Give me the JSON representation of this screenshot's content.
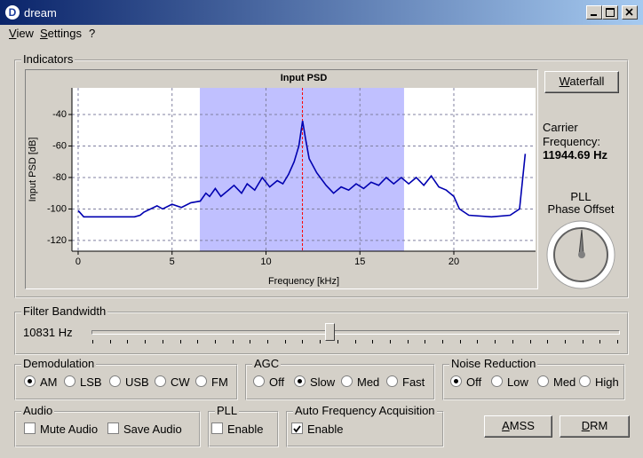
{
  "window": {
    "icon": "D",
    "title": "dream"
  },
  "menu": [
    "View",
    "Settings",
    "?"
  ],
  "indicators": {
    "label": "Indicators",
    "waterfall_button": "Waterfall",
    "carrier_label": [
      "Carrier",
      "Frequency:"
    ],
    "carrier_value": "11944.69 Hz",
    "pll_label": [
      "PLL",
      "Phase Offset"
    ]
  },
  "chart_data": {
    "type": "line",
    "title": "Input PSD",
    "x_label": "Frequency [kHz]",
    "y_label": "Input PSD [dB]",
    "x": [
      0,
      0.3,
      1,
      2,
      3,
      3.3,
      3.5,
      4.2,
      4.5,
      5,
      5.5,
      6,
      6.5,
      6.8,
      7,
      7.3,
      7.6,
      8,
      8.3,
      8.7,
      9,
      9.4,
      9.8,
      10.2,
      10.6,
      10.9,
      11.2,
      11.5,
      11.75,
      11.95,
      12.1,
      12.3,
      12.7,
      13.2,
      13.6,
      14,
      14.4,
      14.8,
      15.2,
      15.6,
      16,
      16.4,
      16.8,
      17.2,
      17.6,
      18,
      18.4,
      18.8,
      19.2,
      19.6,
      20,
      20.3,
      20.8,
      22,
      23,
      23.5,
      23.8
    ],
    "values": [
      -101,
      -105,
      -105,
      -105,
      -105,
      -104,
      -102,
      -98,
      -100,
      -97,
      -99,
      -96,
      -95,
      -90,
      -92,
      -87,
      -92,
      -88,
      -85,
      -90,
      -84,
      -88,
      -80,
      -86,
      -82,
      -84,
      -78,
      -70,
      -60,
      -44,
      -55,
      -68,
      -77,
      -85,
      -90,
      -86,
      -88,
      -84,
      -87,
      -83,
      -85,
      -80,
      -84,
      -80,
      -84,
      -80,
      -85,
      -79,
      -86,
      -88,
      -92,
      -100,
      -104,
      -105,
      -104,
      -100,
      -65
    ],
    "color": "#0000b0",
    "xlim": [
      -0.33,
      24.35
    ],
    "ylim": [
      -126.8,
      -23.1
    ],
    "xticks": [
      0,
      5,
      10,
      15,
      20
    ],
    "yticks": [
      -40,
      -60,
      -80,
      -100,
      -120
    ],
    "grid": true,
    "filter_band": [
      6.48,
      17.35
    ],
    "band_color": "#c0c0ff",
    "carrier_line": 11.94,
    "carrier_color": "#ff0000"
  },
  "filter_bandwidth": {
    "label": "Filter Bandwidth",
    "value": "10831 Hz"
  },
  "demodulation": {
    "label": "Demodulation",
    "options": [
      "AM",
      "LSB",
      "USB",
      "CW",
      "FM"
    ],
    "selected": 0
  },
  "agc": {
    "label": "AGC",
    "options": [
      "Off",
      "Slow",
      "Med",
      "Fast"
    ],
    "selected": 1
  },
  "noise_reduction": {
    "label": "Noise Reduction",
    "options": [
      "Off",
      "Low",
      "Med",
      "High"
    ],
    "selected": 0
  },
  "audio": {
    "label": "Audio",
    "options": [
      {
        "text": "Mute Audio",
        "checked": false
      },
      {
        "text": "Save Audio",
        "checked": false
      }
    ]
  },
  "pll": {
    "label": "PLL",
    "options": [
      {
        "text": "Enable",
        "checked": false
      }
    ]
  },
  "afa": {
    "label": "Auto Frequency Acquisition",
    "options": [
      {
        "text": "Enable",
        "checked": true
      }
    ]
  },
  "buttons": [
    "AMSS",
    "DRM"
  ]
}
